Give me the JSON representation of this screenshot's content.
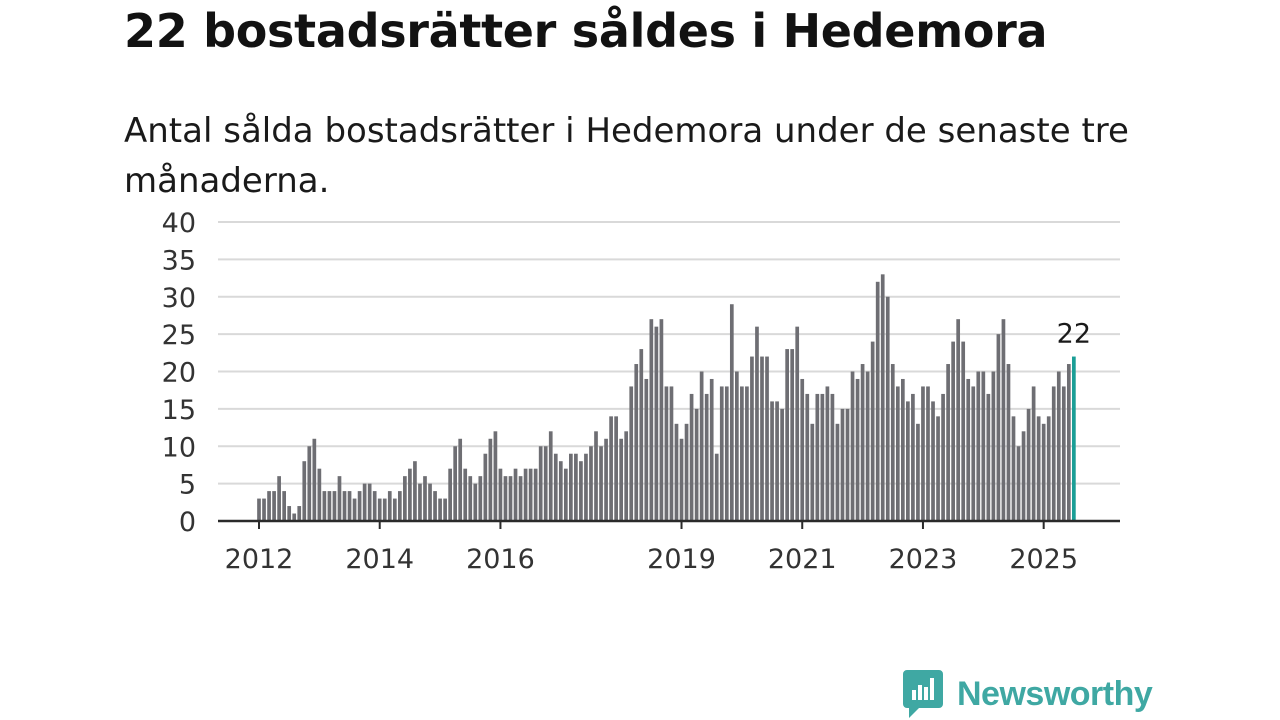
{
  "header": {
    "title": "22 bostadsrätter såldes i Hedemora",
    "subtitle": "Antal sålda bostadsrätter i Hedemora under de senaste tre månaderna."
  },
  "brand": {
    "name": "Newsworthy",
    "color": "#3fa8a3"
  },
  "chart_data": {
    "type": "bar",
    "title": "",
    "xlabel": "",
    "ylabel": "",
    "ylim": [
      0,
      40
    ],
    "yticks": [
      0,
      5,
      10,
      15,
      20,
      25,
      30,
      35,
      40
    ],
    "xticks": [
      "2012",
      "2014",
      "2016",
      "2019",
      "2021",
      "2023",
      "2025"
    ],
    "grid": true,
    "bar_color": "#6e6e73",
    "highlight_color": "#1a9e96",
    "highlight_label": "22",
    "series": [
      {
        "start": "2012-01",
        "frequency": "monthly",
        "values": [
          3,
          3,
          4,
          4,
          6,
          4,
          2,
          1,
          2,
          8,
          10,
          11,
          7,
          4,
          4,
          4,
          6,
          4,
          4,
          3,
          4,
          5,
          5,
          4,
          3,
          3,
          4,
          3,
          4,
          6,
          7,
          8,
          5,
          6,
          5,
          4,
          3,
          3,
          7,
          10,
          11,
          7,
          6,
          5,
          6,
          9,
          11,
          12,
          7,
          6,
          6,
          7,
          6,
          7,
          7,
          7,
          10,
          10,
          12,
          9,
          8,
          7,
          9,
          9,
          8,
          9,
          10,
          12,
          10,
          11,
          14,
          14,
          11,
          12,
          18,
          21,
          23,
          19,
          27,
          26,
          27,
          18,
          18,
          13,
          11,
          13,
          17,
          15,
          20,
          17,
          19,
          9,
          18,
          18,
          29,
          20,
          18,
          18,
          22,
          26,
          22,
          22,
          16,
          16,
          15,
          23,
          23,
          26,
          19,
          17,
          13,
          17,
          17,
          18,
          17,
          13,
          15,
          15,
          20,
          19,
          21,
          20,
          24,
          32,
          33,
          30,
          21,
          18,
          19,
          16,
          17,
          13,
          18,
          18,
          16,
          14,
          17,
          21,
          24,
          27,
          24,
          19,
          18,
          20,
          20,
          17,
          20,
          25,
          27,
          21,
          14,
          10,
          12,
          15,
          18,
          14,
          13,
          14,
          18,
          20,
          18,
          21,
          22
        ]
      }
    ]
  }
}
